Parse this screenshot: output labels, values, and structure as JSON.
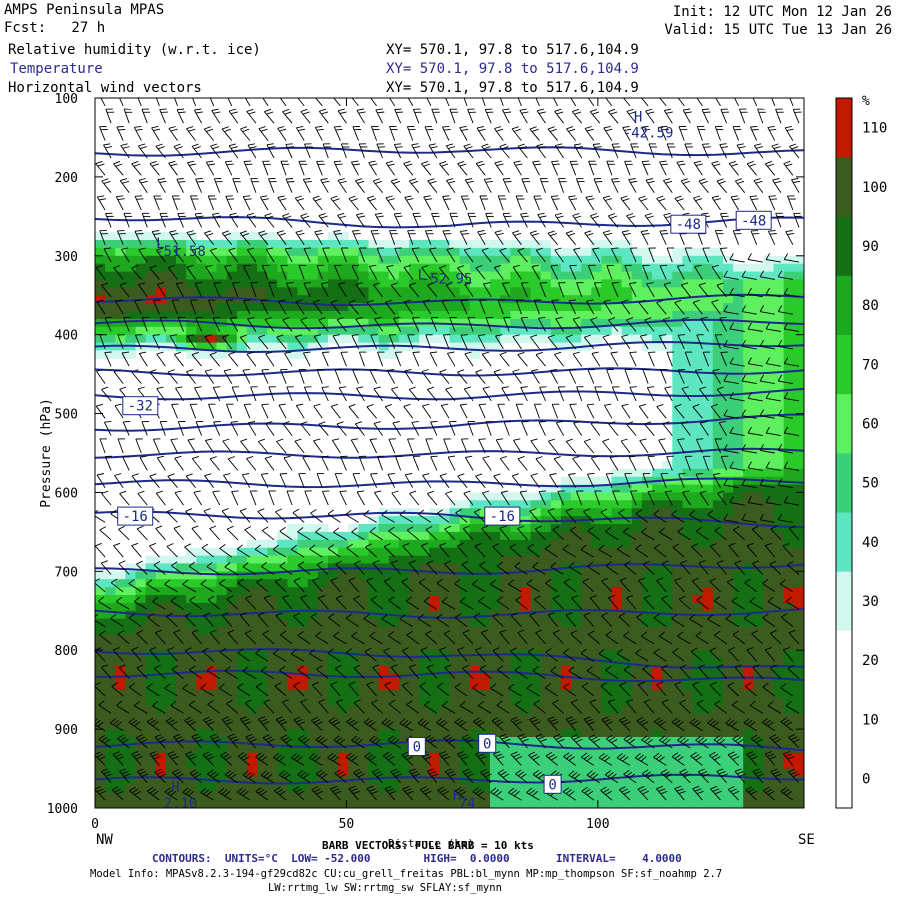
{
  "header": {
    "left1": "AMPS Peninsula MPAS",
    "left2": "Fcst:   27 h",
    "right1": "Init: 12 UTC Mon 12 Jan 26",
    "right2": "Valid: 15 UTC Tue 13 Jan 26"
  },
  "fields": [
    {
      "name": "Relative humidity (w.r.t. ice)",
      "xy": "XY= 570.1, 97.8 to 517.6,104.9",
      "color": "#000000"
    },
    {
      "name": "Temperature",
      "xy": "XY= 570.1, 97.8 to 517.6,104.9",
      "color": "#2b2b8f"
    },
    {
      "name": "Horizontal wind vectors",
      "xy": "XY= 570.1, 97.8 to 517.6,104.9",
      "color": "#000000"
    }
  ],
  "footer": {
    "barb": "BARB VECTORS: FULL BARB = 10 kts",
    "contours": "CONTOURS:  UNITS=°C  LOW= -52.000        HIGH=  0.0000       INTERVAL=    4.0000",
    "model1": "Model Info: MPASv8.2.3-194-gf29cd82c CU:cu_grell_freitas PBL:bl_mynn MP:mp_thompson SF:sf_noahmp 2.7",
    "model2": "LW:rrtmg_lw SW:rrtmg_sw SFLAY:sf_mynn"
  },
  "chart_data": {
    "type": "heatmap",
    "xlabel": "Distance (km)",
    "ylabel": "Pressure (hPa)",
    "x_ticks": [
      0,
      50,
      100
    ],
    "y_ticks": [
      100,
      200,
      300,
      400,
      500,
      600,
      700,
      800,
      900,
      1000
    ],
    "xlim": [
      0,
      141
    ],
    "ylim": [
      1000,
      100
    ],
    "x_end_labels": {
      "left": "NW",
      "right": "SE"
    },
    "colorbar": {
      "unit": "%",
      "levels": [
        0,
        10,
        20,
        30,
        40,
        50,
        60,
        70,
        80,
        90,
        100,
        110
      ],
      "colors": [
        "#ffffff",
        "#ffffff",
        "#ffffff",
        "#d2f7ee",
        "#5ee6c2",
        "#3ccf7a",
        "#5ef05e",
        "#2aca2a",
        "#1ea81e",
        "#157015",
        "#3b5b1f",
        "#c21a00"
      ]
    },
    "temperature_labels": [
      {
        "text": "-48",
        "x": 118,
        "p": 260
      },
      {
        "text": "-48",
        "x": 131,
        "p": 255
      },
      {
        "text": "-32",
        "x": 9,
        "p": 490
      },
      {
        "text": "-16",
        "x": 8,
        "p": 630
      },
      {
        "text": "-16",
        "x": 81,
        "p": 630
      },
      {
        "text": "0",
        "x": 64,
        "p": 922
      },
      {
        "text": "0",
        "x": 78,
        "p": 918
      },
      {
        "text": "0",
        "x": 91,
        "p": 970
      }
    ],
    "extrema_labels": [
      {
        "text": "H",
        "x": 108,
        "p": 130
      },
      {
        "text": "-42.59",
        "x": 110,
        "p": 150
      },
      {
        "text": "L",
        "x": 13,
        "p": 290
      },
      {
        "text": "-51.58",
        "x": 17,
        "p": 300
      },
      {
        "text": "L",
        "x": 65,
        "p": 330
      },
      {
        "text": "-52.95",
        "x": 70,
        "p": 335
      },
      {
        "text": "H",
        "x": 16,
        "p": 980
      },
      {
        "text": "2.10",
        "x": 17,
        "p": 1000
      },
      {
        "text": "H",
        "x": 72,
        "p": 990
      },
      {
        "text": "74",
        "x": 74,
        "p": 1000
      }
    ],
    "temperature_contours_p_at_left_mid_right": [
      [
        170,
        165,
        170
      ],
      [
        250,
        262,
        255
      ],
      [
        355,
        360,
        352
      ],
      [
        385,
        390,
        383
      ],
      [
        418,
        418,
        410
      ],
      [
        448,
        448,
        445
      ],
      [
        478,
        478,
        472
      ],
      [
        518,
        515,
        505
      ],
      [
        552,
        552,
        548
      ],
      [
        588,
        590,
        585
      ],
      [
        628,
        630,
        640
      ],
      [
        700,
        700,
        690
      ],
      [
        752,
        755,
        750
      ],
      [
        800,
        805,
        825
      ],
      [
        830,
        830,
        840
      ],
      [
        920,
        918,
        925
      ],
      [
        965,
        965,
        960
      ]
    ]
  }
}
